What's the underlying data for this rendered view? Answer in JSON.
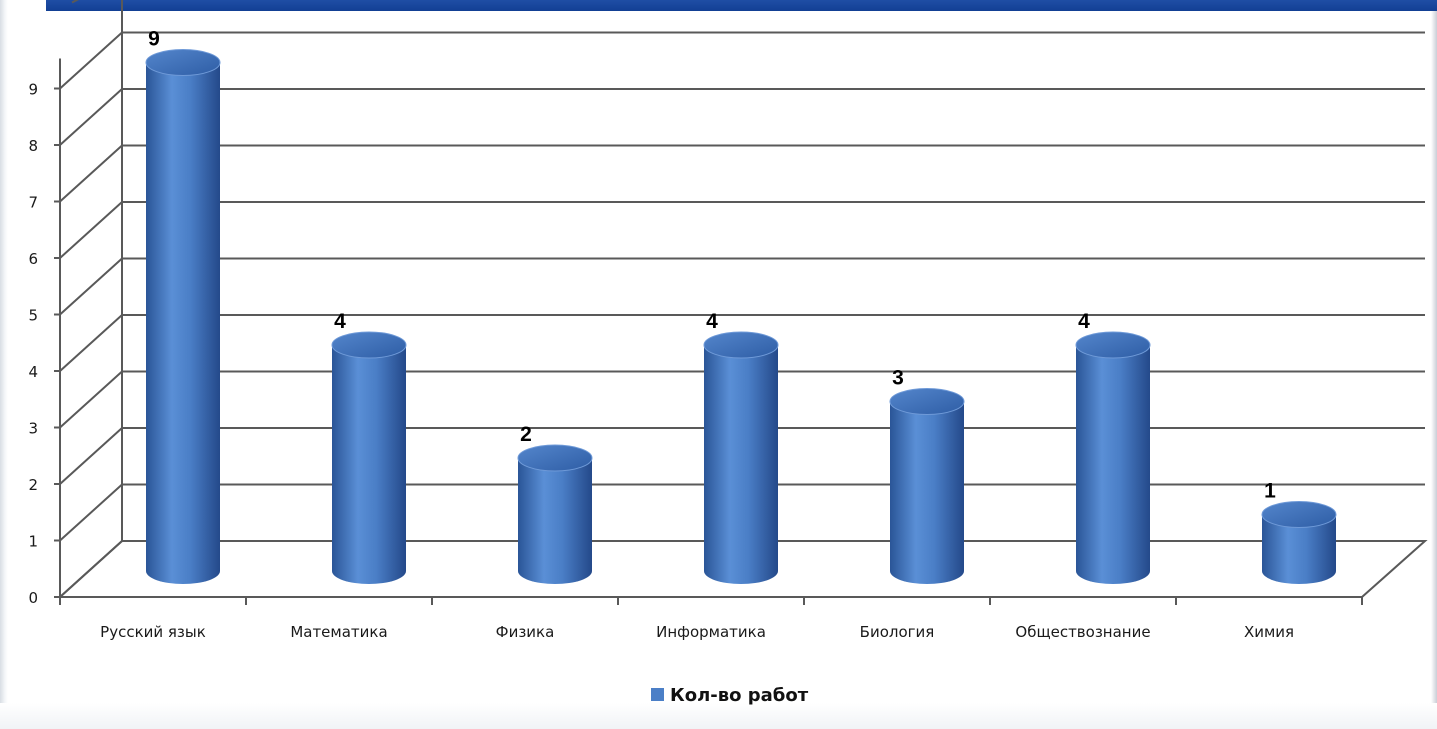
{
  "chart_data": {
    "type": "bar",
    "style": "3d-cylinder",
    "categories": [
      "Русский язык",
      "Математика",
      "Физика",
      "Информатика",
      "Биология",
      "Обществознание",
      "Химия"
    ],
    "series": [
      {
        "name": "Кол-во работ",
        "values": [
          9,
          4,
          2,
          4,
          3,
          4,
          1
        ]
      }
    ],
    "data_labels": [
      "9",
      "4",
      "2",
      "4",
      "3",
      "4",
      "1"
    ],
    "y_ticks": [
      "0",
      "1",
      "2",
      "3",
      "4",
      "5",
      "6",
      "7",
      "8",
      "9"
    ],
    "ylim": [
      0,
      9
    ],
    "grid": true,
    "legend": {
      "placement": "bottom",
      "label": "Кол-во работ"
    },
    "colors": {
      "bar": "#4b7fc7",
      "bar_dark": "#2d5aa0",
      "bar_top": "#3f6fb6",
      "grid": "#595959",
      "header": "#1f4ea5"
    }
  }
}
